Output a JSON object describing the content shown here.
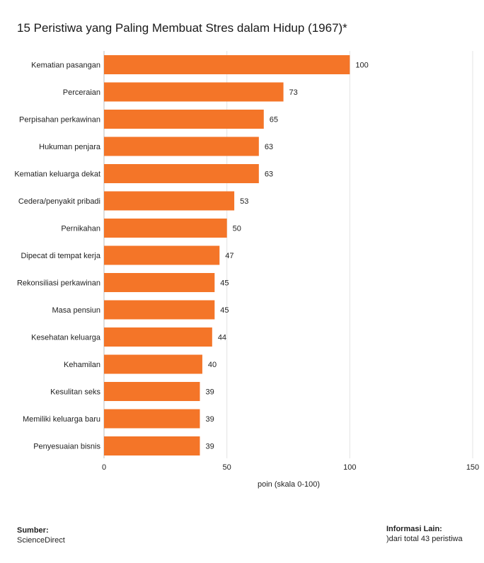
{
  "chart_data": {
    "type": "bar",
    "orientation": "horizontal",
    "title": "15 Peristiwa yang Paling Membuat Stres dalam Hidup (1967)*",
    "categories": [
      "Kematian pasangan",
      "Perceraian",
      "Perpisahan perkawinan",
      "Hukuman penjara",
      "Kematian keluarga dekat",
      "Cedera/penyakit pribadi",
      "Pernikahan",
      "Dipecat di tempat kerja",
      "Rekonsiliasi perkawinan",
      "Masa pensiun",
      "Kesehatan keluarga",
      "Kehamilan",
      "Kesulitan seks",
      "Memiliki keluarga baru",
      "Penyesuaian bisnis"
    ],
    "values": [
      100,
      73,
      65,
      63,
      63,
      53,
      50,
      47,
      45,
      45,
      44,
      40,
      39,
      39,
      39
    ],
    "xlabel": "poin (skala 0-100)",
    "ylabel": "",
    "xlim": [
      0,
      150
    ],
    "xticks": [
      0,
      50,
      100,
      150
    ],
    "grid": true,
    "bar_color": "#f47528"
  },
  "footer": {
    "source_label": "Sumber:",
    "source_value": "ScienceDirect",
    "info_label": "Informasi Lain:",
    "info_value": ")dari total 43 peristiwa"
  }
}
